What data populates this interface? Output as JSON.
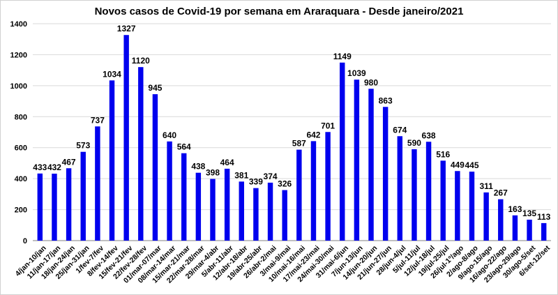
{
  "chart_data": {
    "type": "bar",
    "title": "Novos casos de Covid-19 por semana em Araraquara - Desde janeiro/2021",
    "xlabel": "",
    "ylabel": "",
    "ylim": [
      0,
      1400
    ],
    "yticks": [
      "0",
      "200",
      "400",
      "600",
      "800",
      "1000",
      "1200",
      "1400"
    ],
    "grid": true,
    "bar_color": "#0000ee",
    "categories": [
      "4/jan-10/jan",
      "11/jan-17/jan",
      "18/jan-24/jan",
      "25/jan-31/jan",
      "1/fev-7/fev",
      "8/fev-14/fev",
      "15/fev-21/fev",
      "22/fev-28/fev",
      "01/mar-07/mar",
      "08/mar-14/mar",
      "15/mar-21/mar",
      "22/mar-28/mar",
      "29/mar-4/abr",
      "5/abr-11/abr",
      "12/abr-18/abr",
      "19/abr-25/abr",
      "26/abr-2/mai",
      "3/mai-9/mai",
      "10/mai-16/mai",
      "17/mai-23/mai",
      "24/mai-30/mai",
      "31/mai-6/jun",
      "7/jun-13/jun",
      "14/jun-20/jun",
      "21/jun-27/jun",
      "28/jun-4/jul",
      "5/jul-11/jul",
      "12/jul-18/jul",
      "19/jul-25/jul",
      "26/jul-1º/ago",
      "2/ago-8/ago",
      "9/ago-15/ago",
      "16/ago-22/ago",
      "23/ago-29/ago",
      "30/ago-5/set",
      "6/set-12/set"
    ],
    "values": [
      433,
      432,
      467,
      573,
      737,
      1034,
      1327,
      1120,
      945,
      640,
      564,
      438,
      398,
      464,
      381,
      339,
      374,
      326,
      587,
      642,
      701,
      1149,
      1039,
      980,
      863,
      674,
      590,
      638,
      516,
      449,
      445,
      311,
      267,
      163,
      135,
      113
    ]
  }
}
